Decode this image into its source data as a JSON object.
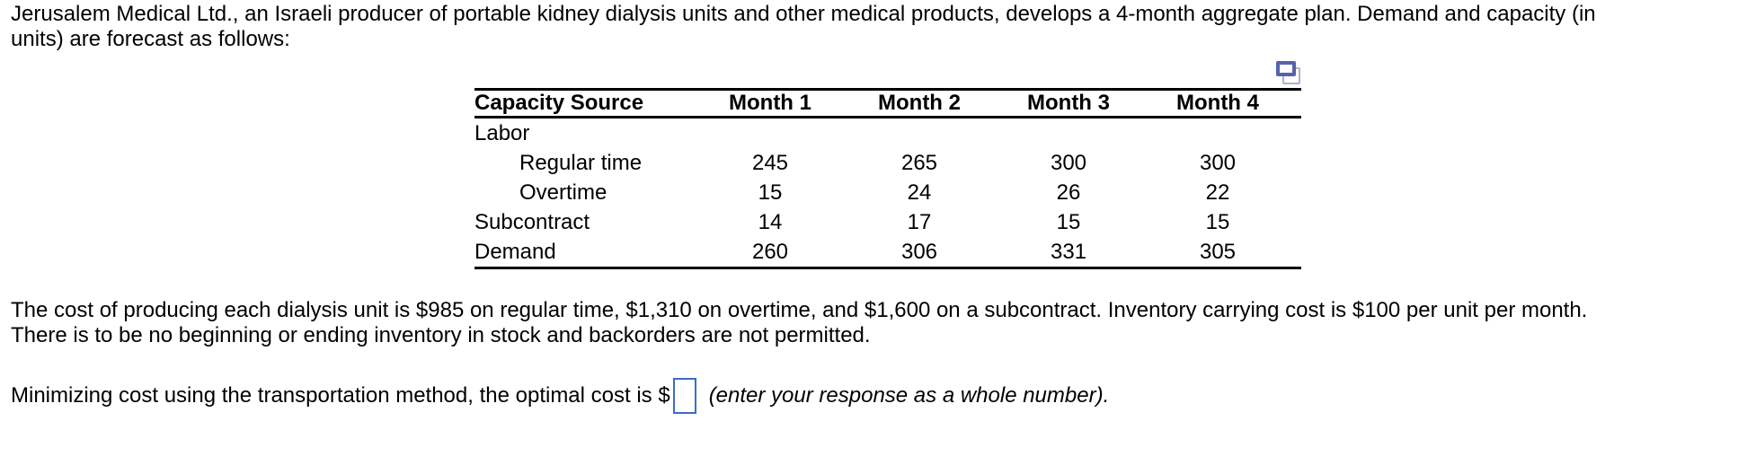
{
  "intro": {
    "lines": [
      "Jerusalem Medical Ltd., an Israeli producer of portable kidney dialysis units and other medical products, develops a 4-month aggregate plan. Demand and capacity (in",
      "units) are forecast as follows:"
    ]
  },
  "table": {
    "columns": [
      "Capacity Source",
      "Month 1",
      "Month 2",
      "Month 3",
      "Month 4"
    ],
    "rows": [
      {
        "label": "Labor",
        "indent": false,
        "values": [
          "",
          "",
          "",
          ""
        ]
      },
      {
        "label": "Regular time",
        "indent": true,
        "values": [
          "245",
          "265",
          "300",
          "300"
        ]
      },
      {
        "label": "Overtime",
        "indent": true,
        "values": [
          "15",
          "24",
          "26",
          "22"
        ]
      },
      {
        "label": "Subcontract",
        "indent": false,
        "values": [
          "14",
          "17",
          "15",
          "15"
        ]
      },
      {
        "label": "Demand",
        "indent": false,
        "values": [
          "260",
          "306",
          "331",
          "305"
        ]
      }
    ],
    "copy_icon": "copy-table-icon"
  },
  "cost_paragraph": {
    "lines": [
      "The cost of producing each dialysis unit is $985 on regular time, $1,310 on overtime, and $1,600 on a subcontract. Inventory carrying cost is $100 per unit per month.",
      "There is to be no beginning or ending inventory in stock and backorders are not permitted."
    ]
  },
  "answer": {
    "prompt": "Minimizing cost using the transportation method, the optimal cost is $",
    "input_value": "",
    "suffix": "(enter your response as a whole number)."
  },
  "colors": {
    "input_border": "#3c6bc5",
    "icon_front": "#5663ab",
    "icon_back": "#a9b1d9",
    "text": "#000000"
  }
}
